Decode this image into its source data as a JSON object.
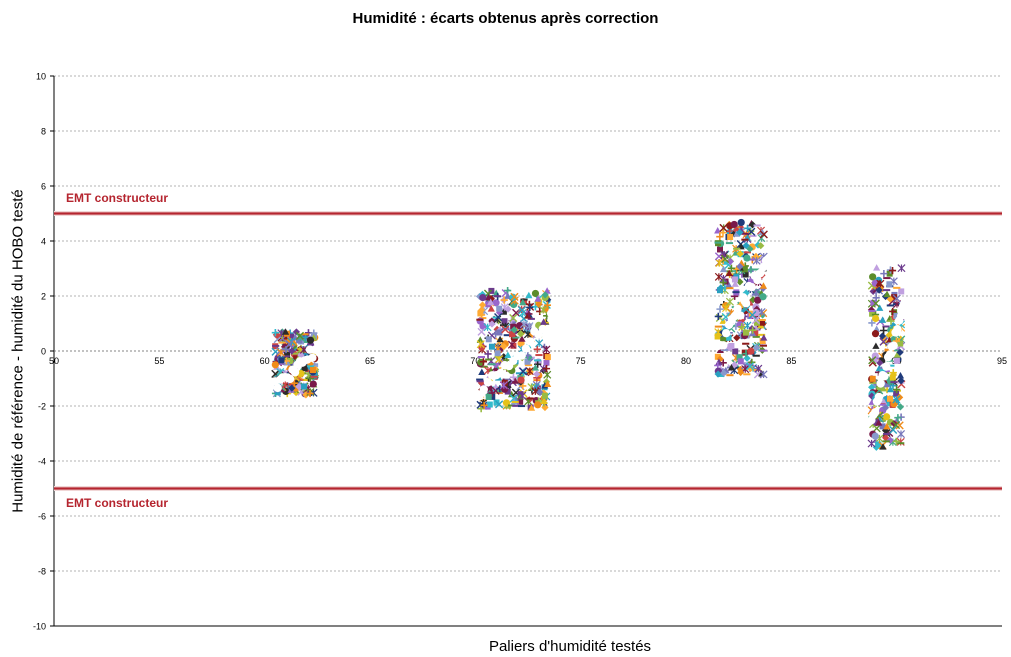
{
  "chart_data": {
    "type": "scatter",
    "title": "Humidité : écarts obtenus après correction",
    "xlabel": "Paliers d'humidité testés",
    "ylabel": "Humidité de référence - humidité du HOBO testé",
    "xlim": [
      50,
      95
    ],
    "ylim": [
      -10,
      10
    ],
    "xticks": [
      "50",
      "55",
      "60",
      "65",
      "70",
      "75",
      "80",
      "85",
      "90",
      "95"
    ],
    "yticks": [
      "-10",
      "-8",
      "-6",
      "-4",
      "-2",
      "0",
      "2",
      "4",
      "6",
      "8",
      "10"
    ],
    "grid": true,
    "legend": "none",
    "reference_lines": [
      {
        "label": "EMT constructeur",
        "y": 5,
        "color": "#b5252f"
      },
      {
        "label": "EMT constructeur",
        "y": -5,
        "color": "#b5252f"
      }
    ],
    "clusters": [
      {
        "x_min": 60.5,
        "x_max": 62.5,
        "y_min": -1.6,
        "y_max": 0.7
      },
      {
        "x_min": 70.2,
        "x_max": 73.6,
        "y_min": -2.1,
        "y_max": 2.2
      },
      {
        "x_min": 81.5,
        "x_max": 83.8,
        "y_min": -0.9,
        "y_max": 4.7
      },
      {
        "x_min": 88.8,
        "x_max": 90.3,
        "y_min": -3.5,
        "y_max": 3.1
      }
    ],
    "series_colors": [
      "#1f3a7a",
      "#8b1a1a",
      "#5b8c2a",
      "#6b3a8c",
      "#2aa0c0",
      "#f08c1a",
      "#8899cc",
      "#cc4444",
      "#99bb44",
      "#9966cc",
      "#33bbcc",
      "#ffaa33",
      "#7a1a4a",
      "#c0a0e0",
      "#2b2b2b",
      "#e6c21a",
      "#44aa88",
      "#7777bb"
    ],
    "marker_shapes": [
      "diamond",
      "square",
      "triangle",
      "x",
      "star",
      "circle",
      "plus",
      "dash"
    ]
  }
}
